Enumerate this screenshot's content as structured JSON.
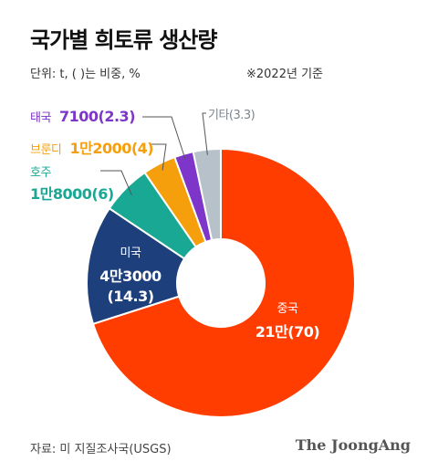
{
  "title": "국가별 희토류 생산량",
  "unit_note": "단위: t, ( )는 비중, %",
  "year_note": "※2022년 기준",
  "source": "자료: 미 지질조사국(USGS)",
  "brand": "The JoongAng",
  "colors": {
    "중국": "#ff3d00",
    "미국": "#1d3f7c",
    "호주": "#18a894",
    "브룬디": "#f59f0c",
    "태국": "#7d36c9",
    "기타": "#b7c1c9"
  },
  "chart_data": {
    "type": "pie",
    "donut": true,
    "start": "top, clockwise",
    "slices": [
      {
        "name": "중국",
        "value_label": "21만",
        "share": 70,
        "label": "21만(70)"
      },
      {
        "name": "미국",
        "value_label": "4만3000",
        "share": 14.3,
        "label": "4만3000(14.3)"
      },
      {
        "name": "호주",
        "value_label": "1만8000",
        "share": 6,
        "label": "1만8000(6)"
      },
      {
        "name": "브룬디",
        "value_label": "1만2000",
        "share": 4,
        "label": "1만2000(4)"
      },
      {
        "name": "태국",
        "value_label": "7100",
        "share": 2.3,
        "label": "7100(2.3)"
      },
      {
        "name": "기타",
        "value_label": "",
        "share": 3.3,
        "label": "(3.3)"
      }
    ]
  }
}
